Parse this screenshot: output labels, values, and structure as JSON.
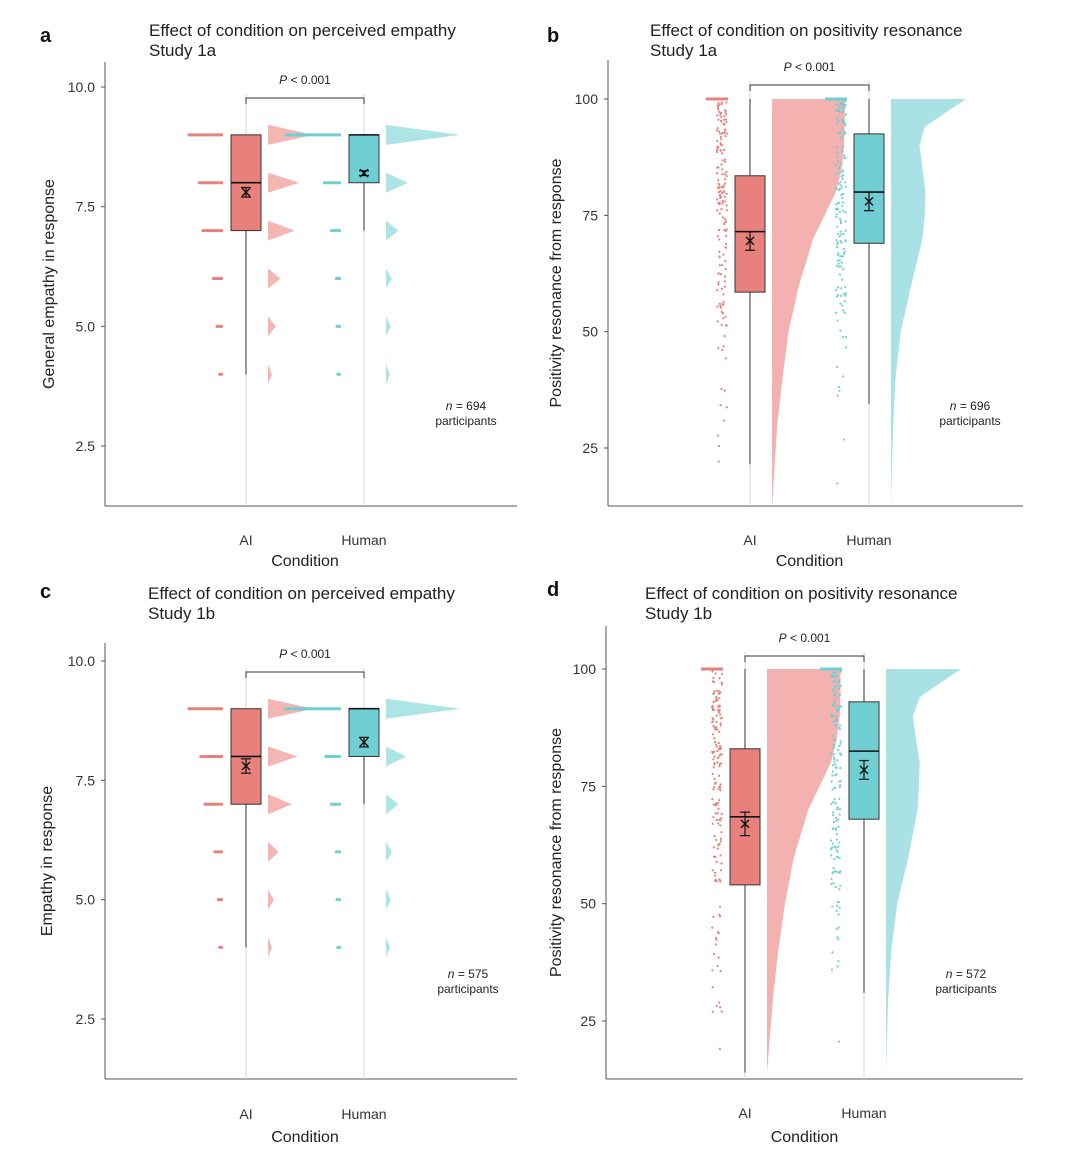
{
  "colors": {
    "ai": "#e8807b",
    "ai_light": "#f2a9a6",
    "human": "#6fcfd3",
    "human_light": "#9fdfe1"
  },
  "chart_data": [
    {
      "panel": "a",
      "type": "raincloud-box",
      "title": "Effect of condition on perceived empathy",
      "subtitle": "Study 1a",
      "xlabel": "Condition",
      "ylabel": "General empathy in response",
      "ylim": [
        1.25,
        10.0
      ],
      "yticks": [
        2.5,
        5.0,
        7.5,
        10.0
      ],
      "tick_decimals": 1,
      "categories": [
        "AI",
        "Human"
      ],
      "discrete": true,
      "levels": [
        4,
        5,
        6,
        7,
        8,
        9
      ],
      "pvalue_prefix": "P",
      "pvalue_text": " < 0.001",
      "n_prefix": "n",
      "n_text": " = 694",
      "n_unit": "participants",
      "groups": [
        {
          "name": "AI",
          "q1": 7.0,
          "median": 8.0,
          "q3": 9.0,
          "wlo": 4.0,
          "whi": 9.0,
          "mean": 7.8,
          "ci": [
            7.7,
            7.9
          ],
          "dist": [
            0.01,
            0.05,
            0.1,
            0.25,
            0.3,
            0.45
          ]
        },
        {
          "name": "Human",
          "q1": 8.0,
          "median": 9.0,
          "q3": 9.0,
          "wlo": 7.0,
          "whi": 9.0,
          "mean": 8.2,
          "ci": [
            8.15,
            8.25
          ],
          "dist": [
            0.01,
            0.02,
            0.03,
            0.1,
            0.2,
            0.75
          ]
        }
      ]
    },
    {
      "panel": "b",
      "type": "raincloud-box",
      "title": "Effect of condition on positivity resonance",
      "subtitle": "Study 1a",
      "xlabel": "Condition",
      "ylabel": "Positivity resonance from response",
      "ylim": [
        12,
        108
      ],
      "yticks": [
        25,
        50,
        75,
        100
      ],
      "tick_decimals": 0,
      "categories": [
        "AI",
        "Human"
      ],
      "discrete": false,
      "pvalue_prefix": "P",
      "pvalue_text": " < 0.001",
      "n_prefix": "n",
      "n_text": " = 696",
      "n_unit": "participants",
      "groups": [
        {
          "name": "AI",
          "q1": 58.5,
          "median": 71.5,
          "q3": 83.5,
          "wlo": 21.5,
          "whi": 100,
          "mean": 69.5,
          "ci": [
            67.5,
            71.5
          ],
          "density": [
            [
              12,
              0.0
            ],
            [
              20,
              0.03
            ],
            [
              30,
              0.07
            ],
            [
              40,
              0.14
            ],
            [
              50,
              0.22
            ],
            [
              60,
              0.36
            ],
            [
              70,
              0.55
            ],
            [
              75,
              0.7
            ],
            [
              80,
              0.85
            ],
            [
              85,
              0.93
            ],
            [
              90,
              0.96
            ],
            [
              95,
              0.97
            ],
            [
              100,
              0.97
            ]
          ]
        },
        {
          "name": "Human",
          "q1": 69,
          "median": 80,
          "q3": 92.5,
          "wlo": 34.5,
          "whi": 100,
          "mean": 78,
          "ci": [
            76,
            80
          ],
          "density": [
            [
              12,
              0.0
            ],
            [
              20,
              0.01
            ],
            [
              30,
              0.03
            ],
            [
              40,
              0.06
            ],
            [
              50,
              0.13
            ],
            [
              60,
              0.27
            ],
            [
              70,
              0.42
            ],
            [
              75,
              0.45
            ],
            [
              80,
              0.46
            ],
            [
              85,
              0.42
            ],
            [
              90,
              0.38
            ],
            [
              94,
              0.45
            ],
            [
              97,
              0.72
            ],
            [
              100,
              1.0
            ]
          ]
        }
      ]
    },
    {
      "panel": "c",
      "type": "raincloud-box",
      "title": "Effect of condition on perceived empathy",
      "subtitle": "Study 1b",
      "xlabel": "Condition",
      "ylabel": "Empathy in response",
      "ylim": [
        1.25,
        10.0
      ],
      "yticks": [
        2.5,
        5.0,
        7.5,
        10.0
      ],
      "tick_decimals": 1,
      "categories": [
        "AI",
        "Human"
      ],
      "discrete": true,
      "levels": [
        4,
        5,
        6,
        7,
        8,
        9
      ],
      "pvalue_prefix": "P",
      "pvalue_text": " < 0.001",
      "n_prefix": "n",
      "n_text": " = 575",
      "n_unit": "participants",
      "groups": [
        {
          "name": "AI",
          "q1": 7.0,
          "median": 8.0,
          "q3": 9.0,
          "wlo": 4.0,
          "whi": 9.0,
          "mean": 7.8,
          "ci": [
            7.65,
            7.95
          ],
          "dist": [
            0.01,
            0.03,
            0.08,
            0.22,
            0.28,
            0.45
          ]
        },
        {
          "name": "Human",
          "q1": 8.0,
          "median": 9.0,
          "q3": 9.0,
          "wlo": 7.0,
          "whi": 9.0,
          "mean": 8.3,
          "ci": [
            8.2,
            8.4
          ],
          "dist": [
            0.01,
            0.02,
            0.03,
            0.1,
            0.18,
            0.75
          ]
        }
      ]
    },
    {
      "panel": "d",
      "type": "raincloud-box",
      "title": "Effect of condition on positivity resonance",
      "subtitle": "Study 1b",
      "xlabel": "Condition",
      "ylabel": "Positivity resonance from response",
      "ylim": [
        13,
        108
      ],
      "yticks": [
        25,
        50,
        75,
        100
      ],
      "tick_decimals": 0,
      "categories": [
        "AI",
        "Human"
      ],
      "discrete": false,
      "pvalue_prefix": "P",
      "pvalue_text": " < 0.001",
      "n_prefix": "n",
      "n_text": " = 572",
      "n_unit": "participants",
      "groups": [
        {
          "name": "AI",
          "q1": 54,
          "median": 68.5,
          "q3": 83,
          "wlo": 14,
          "whi": 100,
          "mean": 67,
          "ci": [
            64.5,
            69.5
          ],
          "density": [
            [
              14,
              0.0
            ],
            [
              20,
              0.03
            ],
            [
              30,
              0.08
            ],
            [
              40,
              0.15
            ],
            [
              50,
              0.24
            ],
            [
              60,
              0.36
            ],
            [
              70,
              0.55
            ],
            [
              75,
              0.7
            ],
            [
              80,
              0.85
            ],
            [
              85,
              0.93
            ],
            [
              90,
              0.97
            ],
            [
              95,
              0.98
            ],
            [
              100,
              0.98
            ]
          ]
        },
        {
          "name": "Human",
          "q1": 68,
          "median": 82.5,
          "q3": 93,
          "wlo": 31,
          "whi": 100,
          "mean": 78.5,
          "ci": [
            76.5,
            80.5
          ],
          "density": [
            [
              14,
              0.0
            ],
            [
              20,
              0.01
            ],
            [
              30,
              0.03
            ],
            [
              40,
              0.07
            ],
            [
              50,
              0.15
            ],
            [
              60,
              0.3
            ],
            [
              70,
              0.42
            ],
            [
              75,
              0.44
            ],
            [
              80,
              0.45
            ],
            [
              85,
              0.4
            ],
            [
              90,
              0.36
            ],
            [
              94,
              0.45
            ],
            [
              97,
              0.72
            ],
            [
              100,
              1.0
            ]
          ]
        }
      ]
    }
  ]
}
